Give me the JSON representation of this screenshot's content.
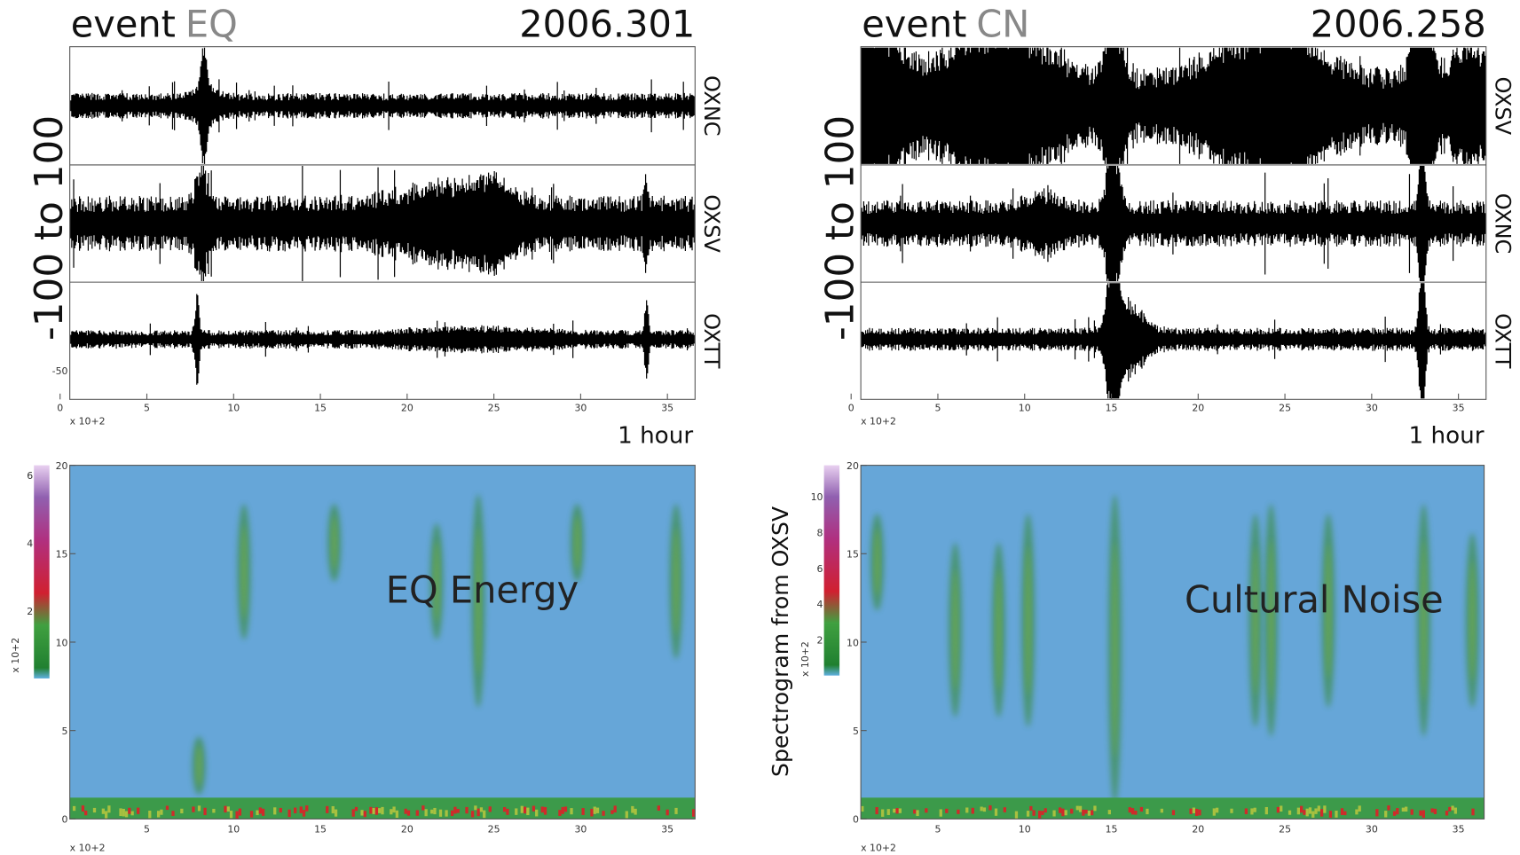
{
  "panels": [
    {
      "event_label": "event",
      "event_code": "EQ",
      "date": "2006.301",
      "y_range": "-100 to 100",
      "traces": [
        "OXNC",
        "OXSV",
        "OXTT"
      ],
      "trace_tick": "-50",
      "x_ticks": [
        "0",
        "5",
        "10",
        "15",
        "20",
        "25",
        "30",
        "35"
      ],
      "x_multiplier": "x 10+2",
      "duration": "1 hour",
      "spectrogram": {
        "annotation": "EQ Energy",
        "y_ticks": [
          "0",
          "5",
          "10",
          "15",
          "20"
        ],
        "x_ticks": [
          "5",
          "10",
          "15",
          "20",
          "25",
          "30",
          "35"
        ],
        "x_multiplier": "x 10+2",
        "colorbar_ticks": [
          "2",
          "4",
          "6"
        ],
        "colorbar_multiplier": "x 10+2"
      }
    },
    {
      "event_label": "event",
      "event_code": "CN",
      "date": "2006.258",
      "y_range": "-100 to 100",
      "traces": [
        "OXSV",
        "OXNC",
        "OXTT"
      ],
      "x_ticks": [
        "0",
        "5",
        "10",
        "15",
        "20",
        "25",
        "30",
        "35"
      ],
      "x_multiplier": "x 10+2",
      "duration": "1 hour",
      "spectrogram": {
        "annotation": "Cultural Noise",
        "y_label": "Spectrogram from OXSV",
        "y_ticks": [
          "0",
          "5",
          "10",
          "15",
          "20"
        ],
        "x_ticks": [
          "5",
          "10",
          "15",
          "20",
          "25",
          "30",
          "35"
        ],
        "x_multiplier": "x 10+2",
        "colorbar_ticks": [
          "2",
          "4",
          "6",
          "8",
          "10"
        ],
        "colorbar_multiplier": "x 10+2"
      }
    }
  ]
}
